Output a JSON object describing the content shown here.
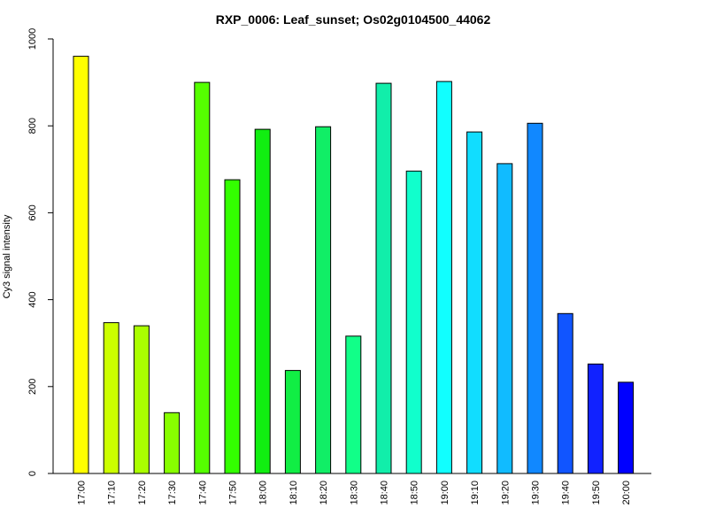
{
  "chart_data": {
    "type": "bar",
    "title": "RXP_0006: Leaf_sunset; Os02g0104500_44062",
    "xlabel": "",
    "ylabel": "Cy3 signal intensity",
    "ylim": [
      0,
      1000
    ],
    "yticks": [
      0,
      200,
      400,
      600,
      800,
      1000
    ],
    "grid": false,
    "categories": [
      "17:00",
      "17:10",
      "17:20",
      "17:30",
      "17:40",
      "17:50",
      "18:00",
      "18:10",
      "18:20",
      "18:30",
      "18:40",
      "18:50",
      "19:00",
      "19:10",
      "19:20",
      "19:30",
      "19:40",
      "19:50",
      "20:00"
    ],
    "values": [
      960,
      347,
      340,
      140,
      900,
      676,
      792,
      237,
      798,
      316,
      898,
      696,
      902,
      786,
      713,
      806,
      368,
      252,
      210
    ],
    "colors": [
      "#FFFF00",
      "#CCFF00",
      "#AAFF00",
      "#88FF00",
      "#55FF00",
      "#33FF00",
      "#11EE11",
      "#11EE44",
      "#11EE66",
      "#11FF88",
      "#11EEAA",
      "#11FFCC",
      "#11FFFF",
      "#11DDFF",
      "#11BBFF",
      "#1188FF",
      "#1155FF",
      "#1122FF",
      "#0000FF"
    ]
  }
}
